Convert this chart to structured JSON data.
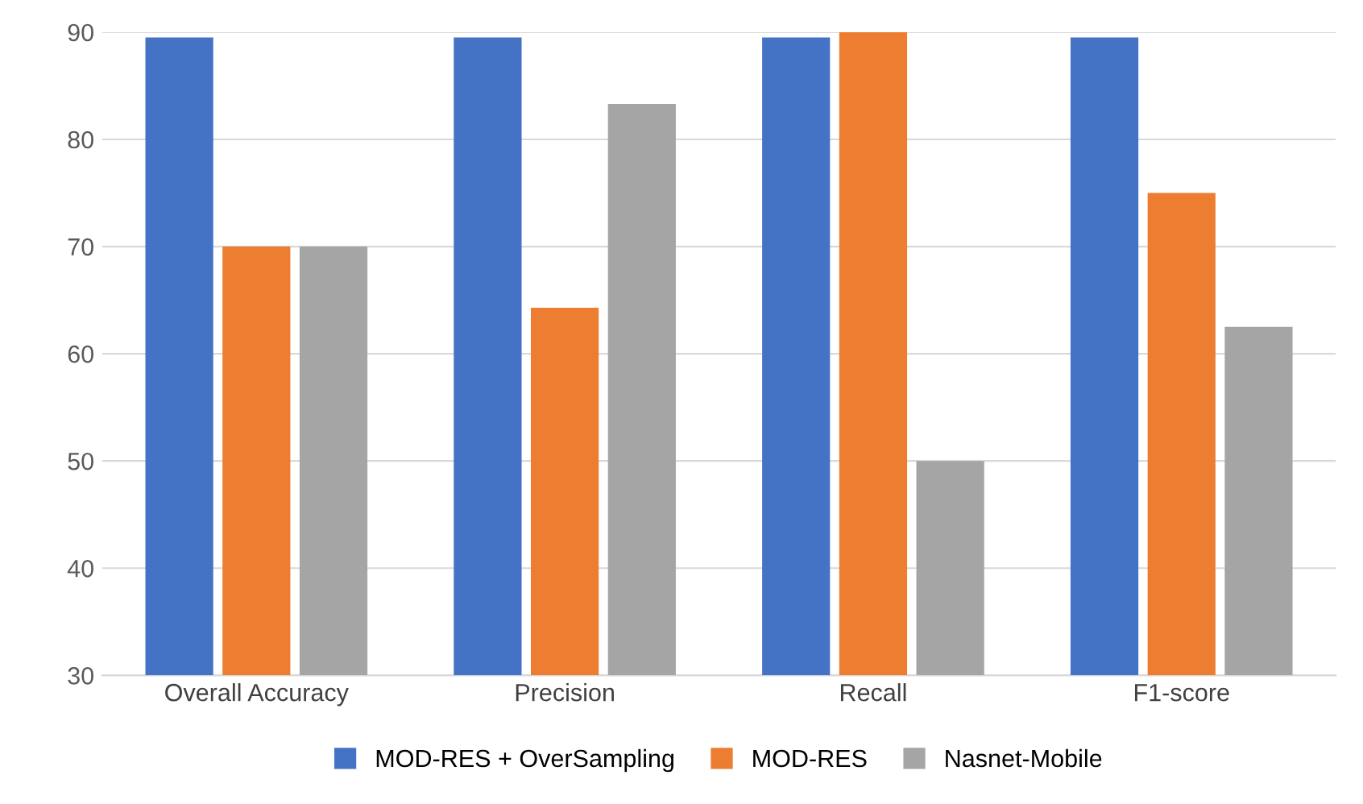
{
  "chart_data": {
    "type": "bar",
    "categories": [
      "Overall Accuracy",
      "Precision",
      "Recall",
      "F1-score"
    ],
    "series": [
      {
        "name": "MOD-RES + OverSampling",
        "color": "#4472c4",
        "values": [
          89.5,
          89.5,
          89.5,
          89.5
        ]
      },
      {
        "name": "MOD-RES",
        "color": "#ed7d31",
        "values": [
          70,
          64.3,
          90,
          75
        ]
      },
      {
        "name": "Nasnet-Mobile",
        "color": "#a5a5a5",
        "values": [
          70,
          83.3,
          50,
          62.5
        ]
      }
    ],
    "ylim": [
      30,
      90
    ],
    "yticks": [
      30,
      40,
      50,
      60,
      70,
      80,
      90
    ],
    "grid": "y",
    "legend": "bottom"
  }
}
